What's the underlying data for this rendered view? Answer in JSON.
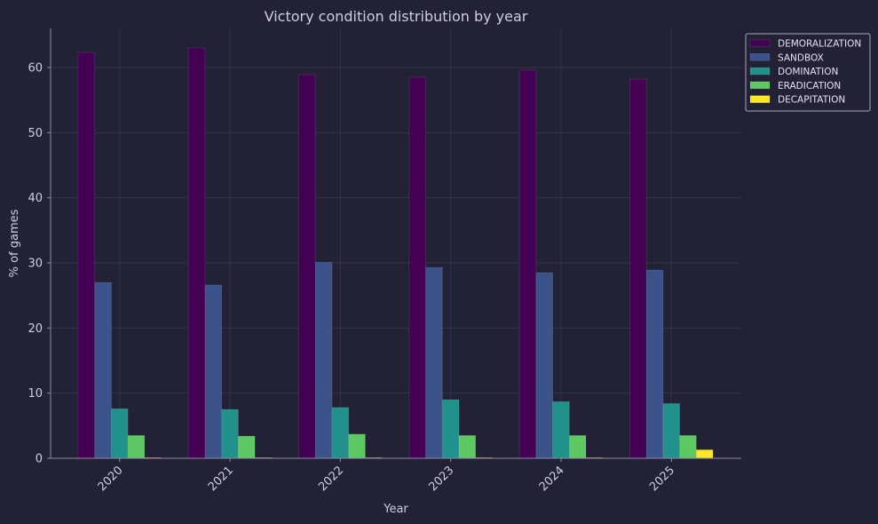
{
  "chart_data": {
    "type": "bar",
    "title": "Victory condition distribution by year",
    "xlabel": "Year",
    "ylabel": "% of games",
    "ylim": [
      0,
      66
    ],
    "yticks": [
      0,
      10,
      20,
      30,
      40,
      50,
      60
    ],
    "categories": [
      "2020",
      "2021",
      "2022",
      "2023",
      "2024",
      "2025"
    ],
    "grid": true,
    "legend_position": "outside-top-right",
    "series": [
      {
        "name": "DEMORALIZATION",
        "color": "#440154",
        "values": [
          62.3,
          63.0,
          58.9,
          58.5,
          59.6,
          58.2
        ]
      },
      {
        "name": "SANDBOX",
        "color": "#3b528b",
        "values": [
          27.0,
          26.6,
          30.1,
          29.3,
          28.5,
          28.9
        ]
      },
      {
        "name": "DOMINATION",
        "color": "#21918c",
        "values": [
          7.6,
          7.5,
          7.8,
          9.0,
          8.7,
          8.4
        ]
      },
      {
        "name": "ERADICATION",
        "color": "#5ec962",
        "values": [
          3.5,
          3.4,
          3.7,
          3.5,
          3.5,
          3.5
        ]
      },
      {
        "name": "DECAPITATION",
        "color": "#fde725",
        "values": [
          0.1,
          0.1,
          0.1,
          0.1,
          0.1,
          1.3
        ]
      }
    ]
  }
}
